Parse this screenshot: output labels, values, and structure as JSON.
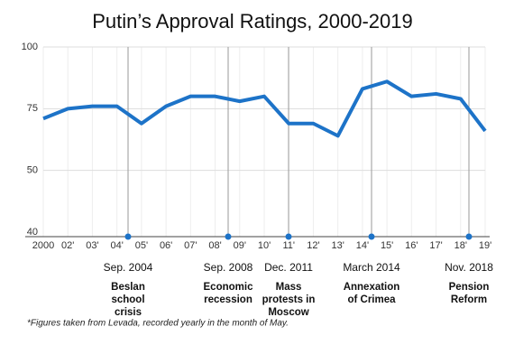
{
  "chart_data": {
    "type": "line",
    "title": "Putin’s Approval Ratings, 2000-2019",
    "categories": [
      "2000",
      "02'",
      "03'",
      "04'",
      "05'",
      "06'",
      "07'",
      "08'",
      "09'",
      "10'",
      "11'",
      "12'",
      "13'",
      "14'",
      "15'",
      "16'",
      "17'",
      "18'",
      "19'"
    ],
    "series": [
      {
        "name": "Approval",
        "color": "#1d73c8",
        "values": [
          71,
          75,
          76,
          76,
          69,
          76,
          80,
          80,
          78,
          80,
          69,
          69,
          64,
          83,
          86,
          80,
          81,
          79,
          66
        ]
      }
    ],
    "ylim": [
      40,
      100
    ],
    "yticks": [
      100,
      75,
      50,
      40
    ],
    "grid": true,
    "events": [
      {
        "date": "Sep. 2004",
        "label": [
          "Beslan",
          "school",
          "crisis"
        ]
      },
      {
        "date": "Sep. 2008",
        "label": [
          "Economic",
          "recession"
        ]
      },
      {
        "date": "Dec. 2011",
        "label": [
          "Mass",
          "protests in",
          "Moscow"
        ]
      },
      {
        "date": "March 2014",
        "label": [
          "Annexation",
          "of Crimea"
        ]
      },
      {
        "date": "Nov. 2018",
        "label": [
          "Pension",
          "Reform"
        ]
      }
    ],
    "note": "*Figures taken from Levada, recorded yearly in the month of May."
  }
}
